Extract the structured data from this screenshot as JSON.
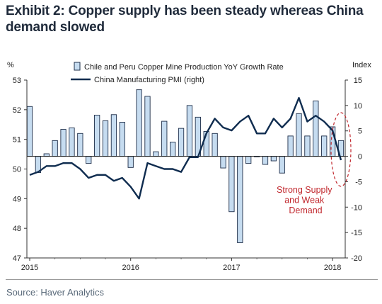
{
  "title": "Exhibit 2: Copper supply has been steady whereas China demand slowed",
  "source": "Source: Haver Analytics",
  "colors": {
    "bar_fill": "#c6dcf0",
    "bar_stroke": "#1f2f4a",
    "line": "#0f2c4f",
    "annotation": "#c1272d"
  },
  "chart_data": {
    "type": "bar+line",
    "left_axis_unit": "%",
    "right_axis_unit": "Index",
    "ylim_left": [
      47,
      53
    ],
    "ylim_right": [
      -20,
      15
    ],
    "left_ticks": [
      "53",
      "52",
      "51",
      "50",
      "49",
      "48",
      "47"
    ],
    "right_ticks": [
      "15",
      "10",
      "5",
      "0",
      "-5",
      "-10",
      "-15",
      "-20"
    ],
    "x_tick_labels": [
      "2015",
      "2016",
      "2017",
      "2018"
    ],
    "legend": {
      "placement": "top",
      "bars_label": "Chile and Peru Copper Mine Production YoY Growth Rate",
      "line_label": "China Manufacturing PMI (right)"
    },
    "series": [
      {
        "name": "Chile and Peru Copper Mine Production YoY Growth Rate",
        "axis": "right",
        "kind": "bar",
        "values": [
          9.8,
          -3.2,
          0.5,
          3.1,
          5.3,
          5.6,
          4.5,
          -1.4,
          8.1,
          7.0,
          8.2,
          6.7,
          -2.2,
          13.1,
          11.8,
          0.9,
          6.9,
          2.8,
          5.5,
          10.0,
          7.7,
          4.9,
          4.5,
          -2.3,
          -10.9,
          -17,
          -1.4,
          -0.1,
          -1.6,
          -0.9,
          -3.3,
          4.0,
          8.4,
          4.0,
          10.9,
          4.0,
          5.8,
          3.1
        ]
      },
      {
        "name": "China Manufacturing PMI (right)",
        "axis": "left",
        "kind": "line",
        "values": [
          49.8,
          49.9,
          50.1,
          50.1,
          50.2,
          50.2,
          50.0,
          49.7,
          49.8,
          49.8,
          49.6,
          49.7,
          49.4,
          49.0,
          50.2,
          50.1,
          50.0,
          50.0,
          49.9,
          50.4,
          50.4,
          51.2,
          51.7,
          51.4,
          51.3,
          51.6,
          51.8,
          51.2,
          51.2,
          51.7,
          51.4,
          51.7,
          52.4,
          51.6,
          51.8,
          51.6,
          51.3,
          50.3
        ]
      }
    ],
    "annotation": "Strong Supply and Weak Demand"
  }
}
